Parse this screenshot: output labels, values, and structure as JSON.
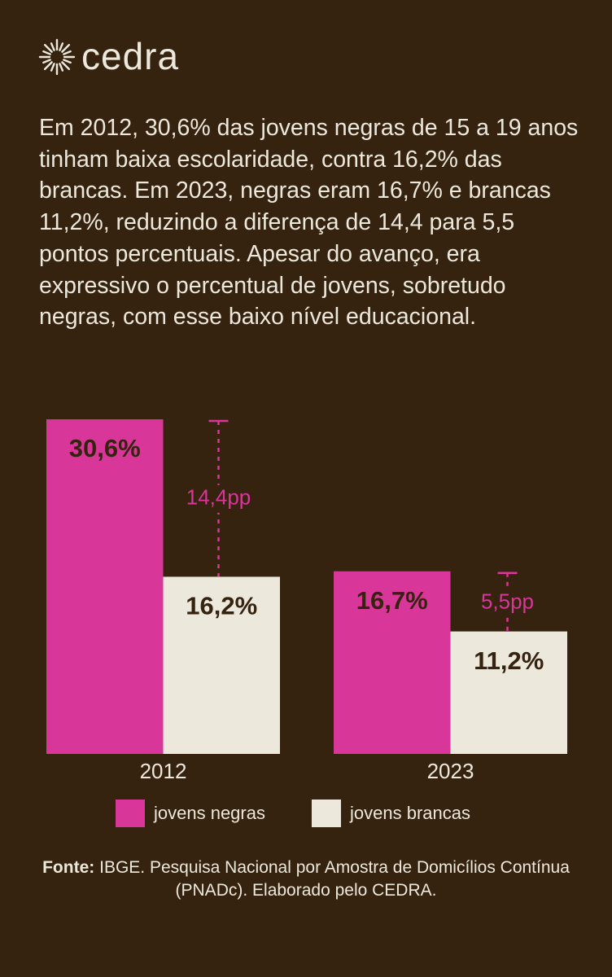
{
  "header": {
    "brand": "cedra",
    "text": "Em 2012, 30,6% das jovens negras de 15 a 19 anos tinham baixa escolaridade, contra 16,2% das brancas. Em 2023, negras eram 16,7% e brancas 11,2%, reduzindo a diferença de 14,4 para 5,5 pontos percentuais. Apesar do avanço, era expressivo o percentual de jovens, sobretudo negras, com esse baixo nível educacional."
  },
  "chart_data": {
    "type": "bar",
    "categories": [
      "2012",
      "2023"
    ],
    "series": [
      {
        "name": "jovens negras",
        "color": "#d9369a",
        "values": [
          30.6,
          16.7
        ],
        "value_labels": [
          "30,6%",
          "16,7%"
        ]
      },
      {
        "name": "jovens brancas",
        "color": "#ece8dc",
        "values": [
          16.2,
          11.2
        ],
        "value_labels": [
          "16,2%",
          "11,2%"
        ]
      }
    ],
    "differences": {
      "color": "#d9369a",
      "values": [
        14.4,
        5.5
      ],
      "value_labels": [
        "14,4pp",
        "5,5pp"
      ]
    }
  },
  "source": {
    "label": "Fonte:",
    "text": "IBGE. Pesquisa Nacional por Amostra de Domicílios Contínua (PNADc). Elaborado pelo CEDRA."
  }
}
